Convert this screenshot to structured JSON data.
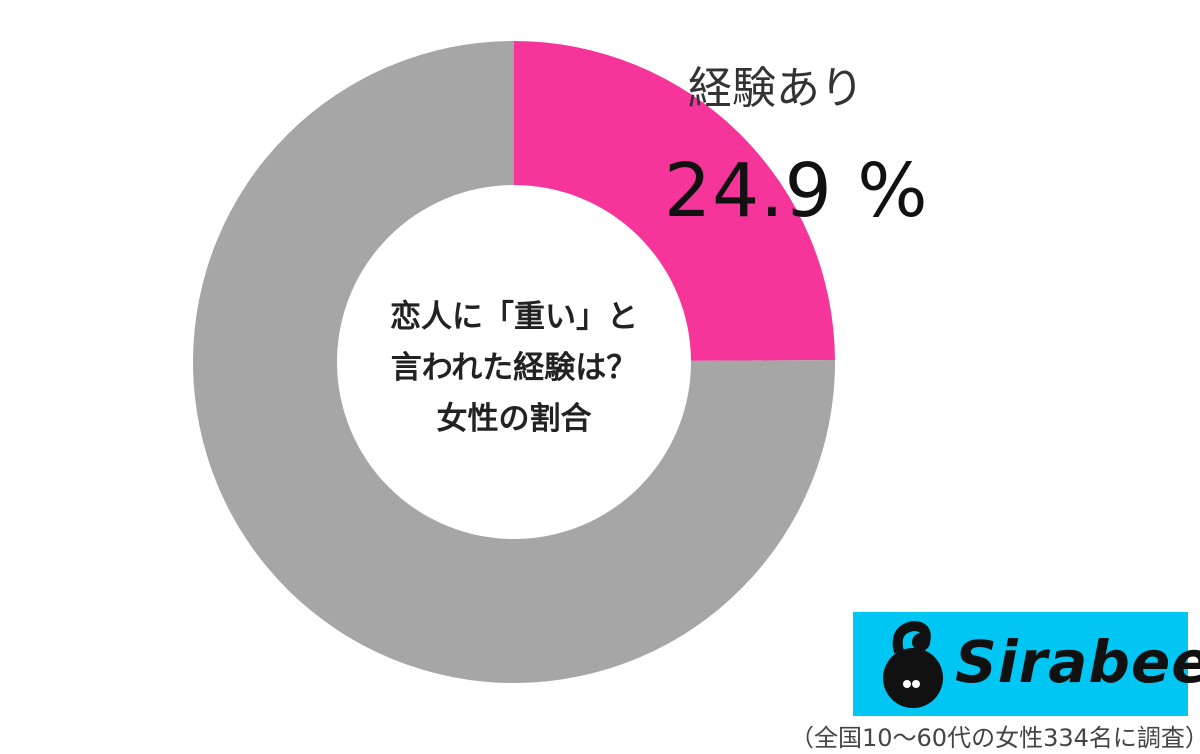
{
  "chart_data": {
    "type": "pie",
    "donut": true,
    "title": "恋人に「重い」と言われた経験は？女性の割合",
    "title_lines": [
      "恋人に「重い」と",
      "言われた経験は？",
      "女性の割合"
    ],
    "categories": [
      "経験あり",
      ""
    ],
    "values": [
      24.9,
      75.1
    ],
    "colors": [
      "#f5359a",
      "#a6a6a6"
    ],
    "data_labels": [
      {
        "category": "経験あり",
        "value_text": "24.9 %"
      }
    ],
    "legend": "none",
    "start_angle": "12 o'clock, clockwise"
  },
  "branding": {
    "logo_text": "Sirabee",
    "logo_color": "#00c6f3"
  },
  "footnote": "（全国10～60代の女性334名に調査）"
}
